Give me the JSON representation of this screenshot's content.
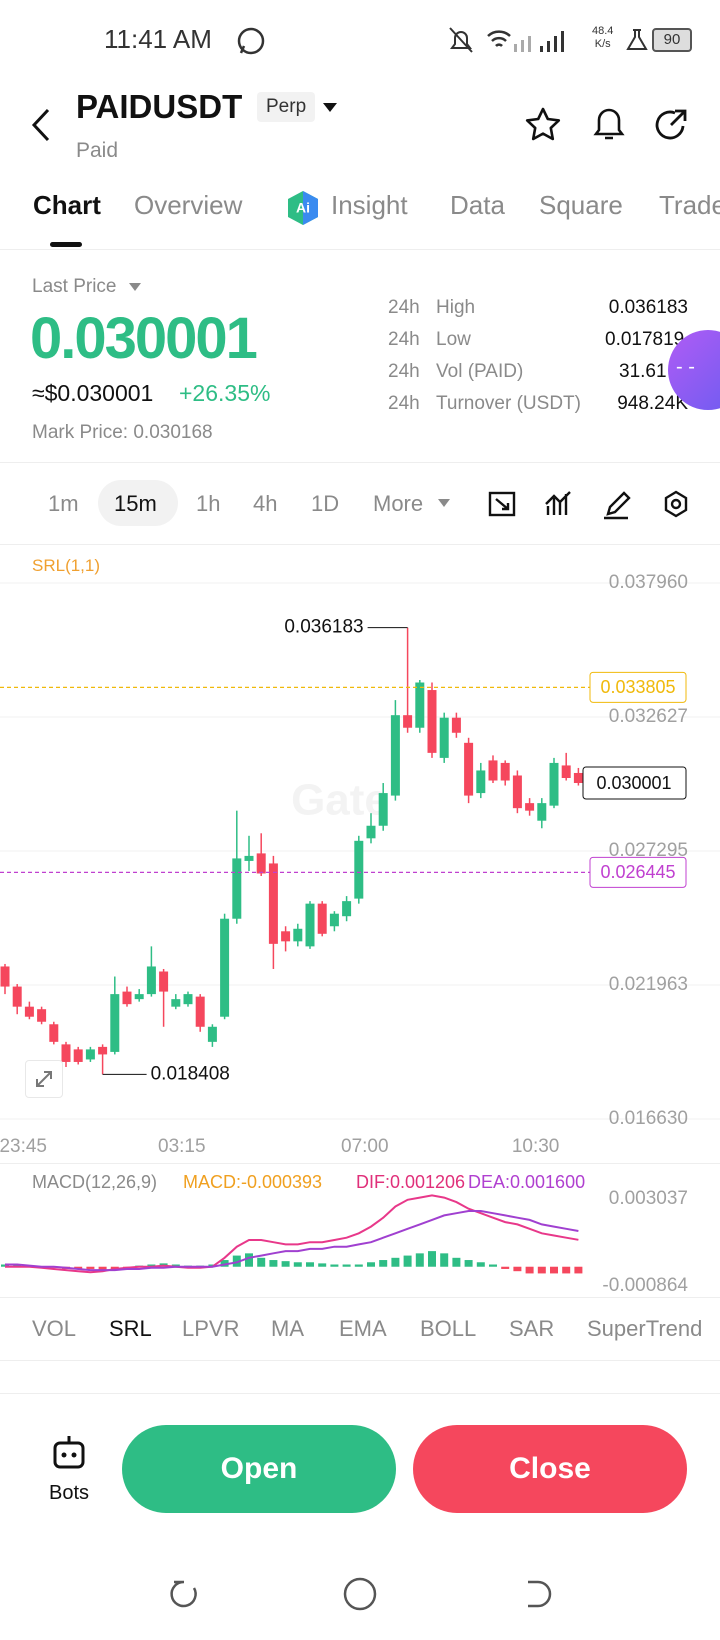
{
  "status_bar": {
    "time": "11:41 AM",
    "net_speed": "48.4",
    "net_unit": "K/s",
    "battery": "90"
  },
  "header": {
    "symbol": "PAIDUSDT",
    "badge": "Perp",
    "name": "Paid"
  },
  "tabs": [
    "Chart",
    "Overview",
    "Insight",
    "Data",
    "Square",
    "Trade"
  ],
  "ticker": {
    "last_price_label": "Last Price",
    "last_price": "0.030001",
    "usd_price": "≈$0.030001",
    "change": "+26.35%",
    "mark_price": "Mark Price: 0.030168",
    "stats": [
      [
        "24h",
        "High",
        "0.036183"
      ],
      [
        "24h",
        "Low",
        "0.017819"
      ],
      [
        "24h",
        "Vol (PAID)",
        "31.61"
      ],
      [
        "24h",
        "Turnover (USDT)",
        "948.24K"
      ]
    ]
  },
  "intervals": [
    "1m",
    "15m",
    "1h",
    "4h",
    "1D",
    "More"
  ],
  "chart_data": {
    "type": "candlestick",
    "indicator": "SRL(1,1)",
    "watermark": "Gate",
    "up_color": "#2ebd85",
    "down_color": "#f5475d",
    "categories": [
      null,
      "23:45",
      null,
      null,
      null,
      null,
      null,
      null,
      null,
      null,
      null,
      null,
      null,
      null,
      "03:15",
      null,
      null,
      null,
      null,
      null,
      null,
      null,
      null,
      null,
      null,
      null,
      null,
      null,
      null,
      "07:00",
      null,
      null,
      null,
      null,
      null,
      null,
      null,
      null,
      null,
      null,
      null,
      null,
      null,
      "10:30",
      null,
      null,
      null,
      null
    ],
    "open": [
      0.0227,
      0.0219,
      0.0211,
      0.021,
      0.0204,
      0.0196,
      0.0194,
      0.019,
      0.0195,
      0.0193,
      0.0217,
      0.0214,
      0.0216,
      0.0225,
      0.0211,
      0.0212,
      0.0215,
      0.0197,
      0.0207,
      0.0246,
      0.0269,
      0.0272,
      0.0268,
      0.0241,
      0.0237,
      0.0235,
      0.0252,
      0.0243,
      0.0247,
      0.0254,
      0.0278,
      0.0283,
      0.0295,
      0.0327,
      0.0322,
      0.0337,
      0.031,
      0.0326,
      0.0316,
      0.0296,
      0.0309,
      0.0308,
      0.0303,
      0.0292,
      0.0285,
      0.0291,
      0.0307,
      0.0304
    ],
    "high": [
      0.0228,
      0.022,
      0.0213,
      0.0211,
      0.0205,
      0.0197,
      0.0195,
      0.0195,
      0.0196,
      0.0223,
      0.0219,
      0.0218,
      0.0235,
      0.0226,
      0.0216,
      0.0217,
      0.0216,
      0.0204,
      0.0248,
      0.0289,
      0.0279,
      0.028,
      0.0271,
      0.0243,
      0.0244,
      0.0253,
      0.0253,
      0.0249,
      0.0255,
      0.0279,
      0.0288,
      0.03,
      0.0333,
      0.036183,
      0.0341,
      0.034,
      0.0328,
      0.0328,
      0.0318,
      0.0308,
      0.0311,
      0.0309,
      0.0305,
      0.0294,
      0.0294,
      0.031,
      0.0312,
      0.0306
    ],
    "low": [
      0.0216,
      0.0208,
      0.0206,
      0.0204,
      0.0196,
      0.0187,
      0.0188,
      0.0189,
      0.018408,
      0.0192,
      0.0211,
      0.0213,
      0.0215,
      0.0203,
      0.021,
      0.0211,
      0.0201,
      0.0195,
      0.0206,
      0.0244,
      0.0265,
      0.0263,
      0.0226,
      0.0233,
      0.0235,
      0.0234,
      0.0239,
      0.0241,
      0.0245,
      0.0252,
      0.0276,
      0.0281,
      0.0293,
      0.032,
      0.032,
      0.031,
      0.0308,
      0.0318,
      0.0292,
      0.0294,
      0.03,
      0.0299,
      0.0288,
      0.0287,
      0.0282,
      0.029,
      0.0301,
      0.0299
    ],
    "close": [
      0.0219,
      0.0211,
      0.0207,
      0.0205,
      0.0197,
      0.0189,
      0.0189,
      0.0194,
      0.0192,
      0.0216,
      0.0212,
      0.0216,
      0.0227,
      0.0217,
      0.0214,
      0.0216,
      0.0203,
      0.0203,
      0.0246,
      0.027,
      0.0271,
      0.0264,
      0.0236,
      0.0237,
      0.0242,
      0.0252,
      0.024,
      0.0248,
      0.0253,
      0.0277,
      0.0283,
      0.0296,
      0.0327,
      0.0322,
      0.034,
      0.0312,
      0.0326,
      0.032,
      0.0295,
      0.0305,
      0.0301,
      0.0301,
      0.029,
      0.0289,
      0.0292,
      0.0308,
      0.0302,
      0.030001
    ],
    "ylim": [
      0.01663,
      0.03796
    ],
    "yticks": [
      {
        "value": 0.03796,
        "label": "0.037960"
      },
      0.032627,
      0.027295,
      0.021963,
      {
        "value": 0.01663,
        "label": "0.016630"
      }
    ],
    "annotations": {
      "high": 0.036183,
      "low": 0.018408
    },
    "lines": [
      {
        "value": 0.033805,
        "color": "#f0b90b"
      },
      {
        "value": 0.026445,
        "color": "#c040d0"
      }
    ],
    "last_price": 0.030001
  },
  "macd": {
    "type": "macd",
    "label": "MACD(12,26,9)",
    "macd": "MACD:-0.000393",
    "dif": "DIF:0.001206",
    "dea": "DEA:0.001600",
    "dif_color": "#e8388a",
    "dea_color": "#a040d0",
    "ylim": [
      -0.000864,
      0.003037
    ],
    "yticks": [
      0.003037,
      -0.000864
    ],
    "hist": [
      0.0001,
      0.0001,
      5e-05,
      0,
      -5e-05,
      -0.0001,
      -0.0001,
      -0.0001,
      -0.00015,
      -0.0001,
      -5e-05,
      5e-05,
      0.0001,
      0.00015,
      0.0001,
      5e-05,
      5e-05,
      0.0001,
      0.0003,
      0.0005,
      0.0006,
      0.0004,
      0.0003,
      0.00025,
      0.0002,
      0.0002,
      0.00015,
      0.0001,
      0.0001,
      0.0001,
      0.0002,
      0.0003,
      0.0004,
      0.0005,
      0.0006,
      0.0007,
      0.0006,
      0.0004,
      0.0003,
      0.0002,
      0.0001,
      -0.0001,
      -0.0002,
      -0.0003,
      -0.0003,
      -0.0003,
      -0.0003,
      -0.0003
    ],
    "dif_values": [
      0,
      0,
      0,
      -5e-05,
      -0.0001,
      -0.00015,
      -0.0002,
      -0.00025,
      -0.0002,
      -0.0001,
      -5e-05,
      0,
      0,
      5e-05,
      0,
      -5e-05,
      -5e-05,
      0,
      0.0004,
      0.0009,
      0.0012,
      0.0012,
      0.0011,
      0.001,
      0.001,
      0.0011,
      0.0011,
      0.0012,
      0.0013,
      0.0015,
      0.0018,
      0.0022,
      0.0027,
      0.003,
      0.0031,
      0.0032,
      0.0031,
      0.0029,
      0.0026,
      0.0024,
      0.0022,
      0.002,
      0.0019,
      0.0017,
      0.0015,
      0.0014,
      0.0013,
      0.001206
    ],
    "dea_values": [
      0.0001,
      0.0001,
      5e-05,
      0,
      0,
      -5e-05,
      -0.0001,
      -0.00015,
      -0.00015,
      -0.00015,
      -0.0001,
      -0.0001,
      -5e-05,
      -5e-05,
      0,
      0,
      0,
      0,
      0.0001,
      0.0002,
      0.0004,
      0.0005,
      0.0006,
      0.0007,
      0.0007,
      0.0008,
      0.0008,
      0.0009,
      0.0009,
      0.001,
      0.0011,
      0.0013,
      0.0015,
      0.0017,
      0.0019,
      0.0021,
      0.0023,
      0.0024,
      0.0025,
      0.0025,
      0.0024,
      0.0023,
      0.0022,
      0.0021,
      0.0019,
      0.0018,
      0.0017,
      0.0016
    ]
  },
  "indicators": [
    "VOL",
    "SRL",
    "LPVR",
    "MA",
    "EMA",
    "BOLL",
    "SAR",
    "SuperTrend"
  ],
  "actions": {
    "bots": "Bots",
    "open": "Open",
    "close": "Close"
  }
}
